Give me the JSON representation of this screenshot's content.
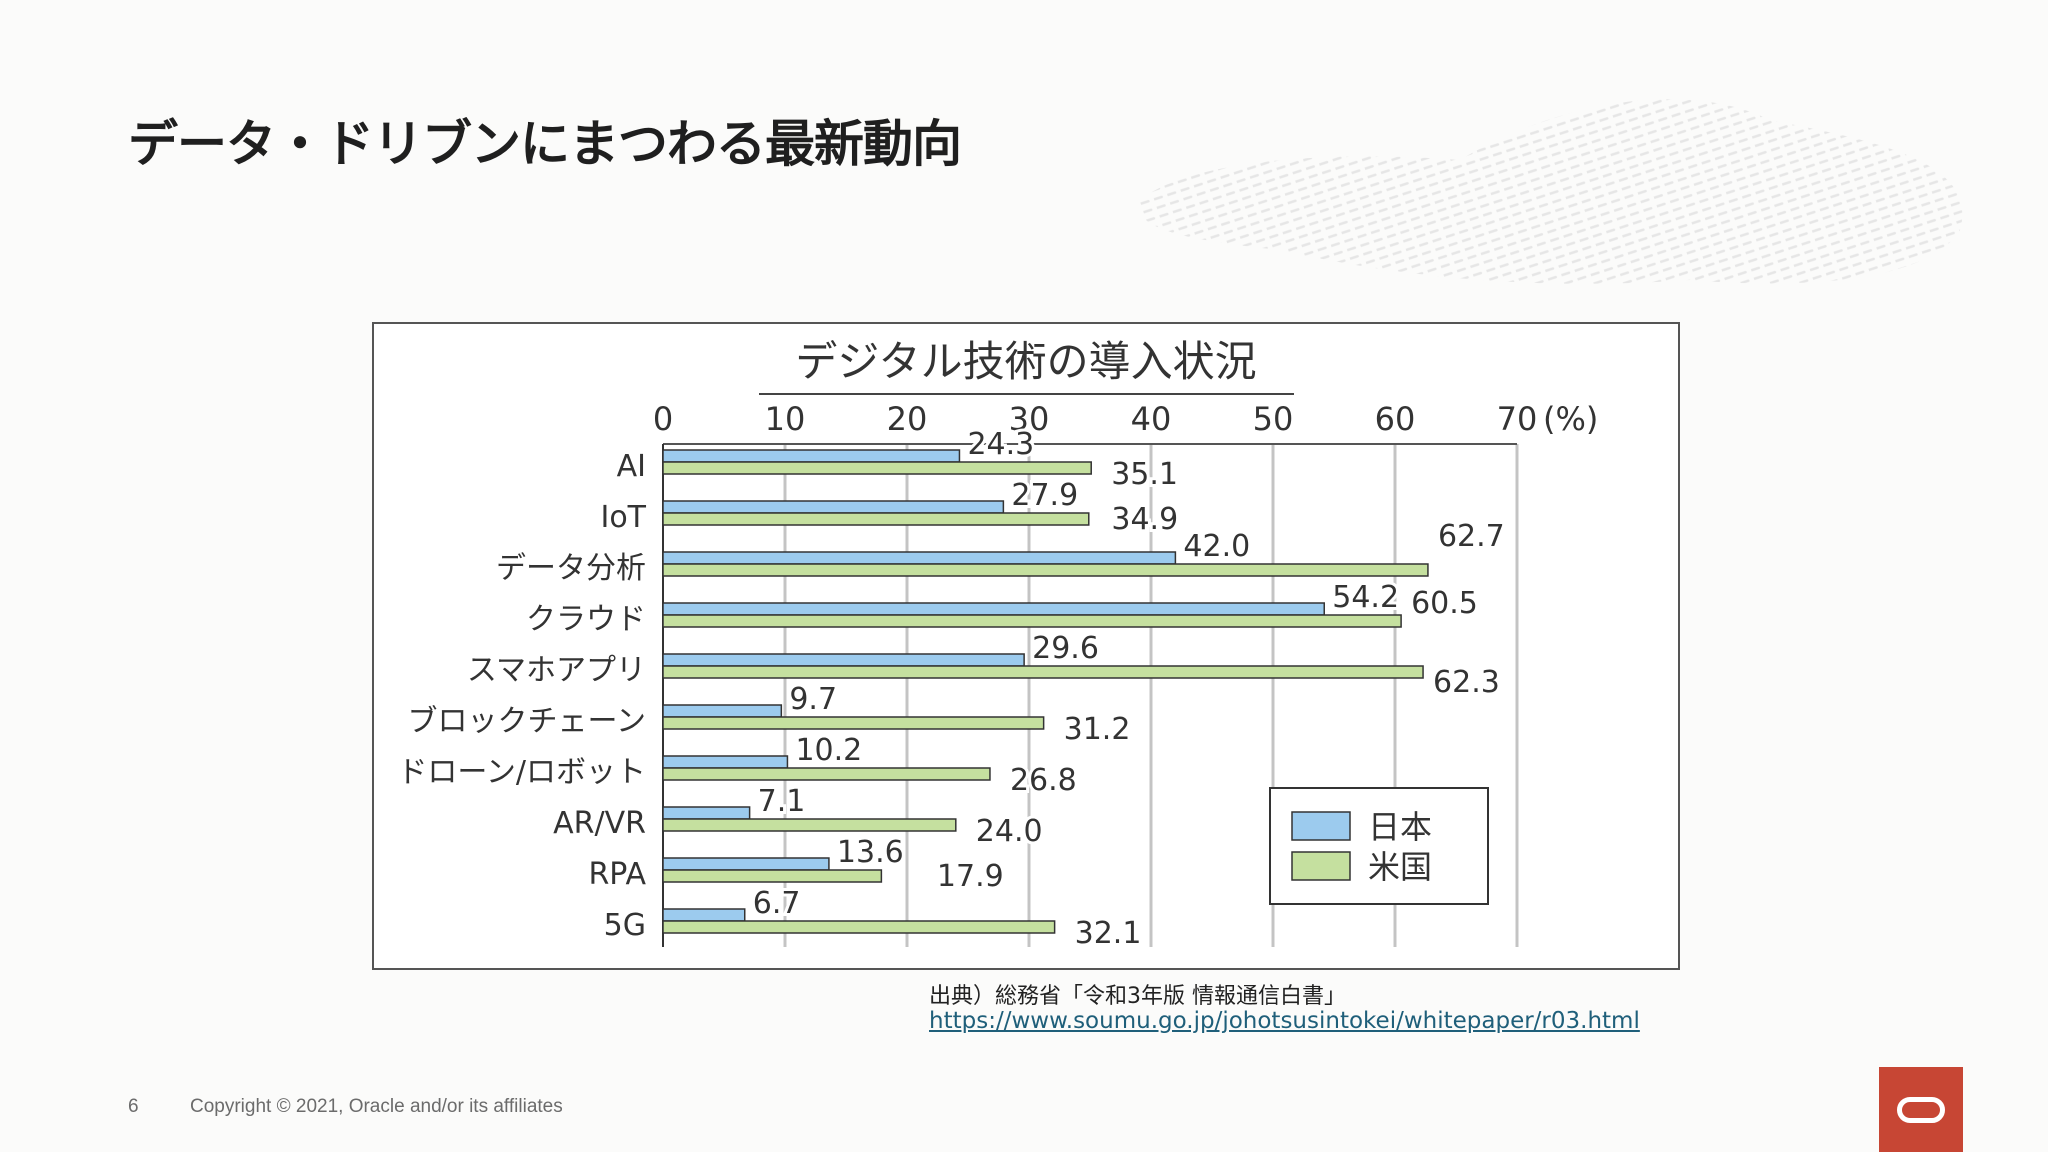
{
  "slide": {
    "title": "データ・ドリブンにまつわる最新動向",
    "page_number": "6",
    "copyright": "Copyright © 2021, Oracle and/or its affiliates"
  },
  "source": {
    "citation": "出典）総務省「令和3年版 情報通信白書」",
    "url": "https://www.soumu.go.jp/johotsusintokei/whitepaper/r03.html"
  },
  "chart_data": {
    "type": "bar",
    "orientation": "horizontal",
    "title": "デジタル技術の導入状況",
    "unit_label": "(%)",
    "categories": [
      "AI",
      "IoT",
      "データ分析",
      "クラウド",
      "スマホアプリ",
      "ブロックチェーン",
      "ドローン/ロボット",
      "AR/VR",
      "RPA",
      "5G"
    ],
    "series": [
      {
        "name": "日本",
        "color": "#9ccbee",
        "values": [
          24.3,
          27.9,
          42.0,
          54.2,
          29.6,
          9.7,
          10.2,
          7.1,
          13.6,
          6.7
        ]
      },
      {
        "name": "米国",
        "color": "#c5e09f",
        "values": [
          35.1,
          34.9,
          62.7,
          60.5,
          62.3,
          31.2,
          26.8,
          24.0,
          17.9,
          32.1
        ]
      }
    ],
    "x_ticks": [
      0,
      10,
      20,
      30,
      40,
      50,
      60,
      70
    ],
    "xlim": [
      0,
      70
    ],
    "grid": true,
    "legend_position": "bottom-right"
  }
}
